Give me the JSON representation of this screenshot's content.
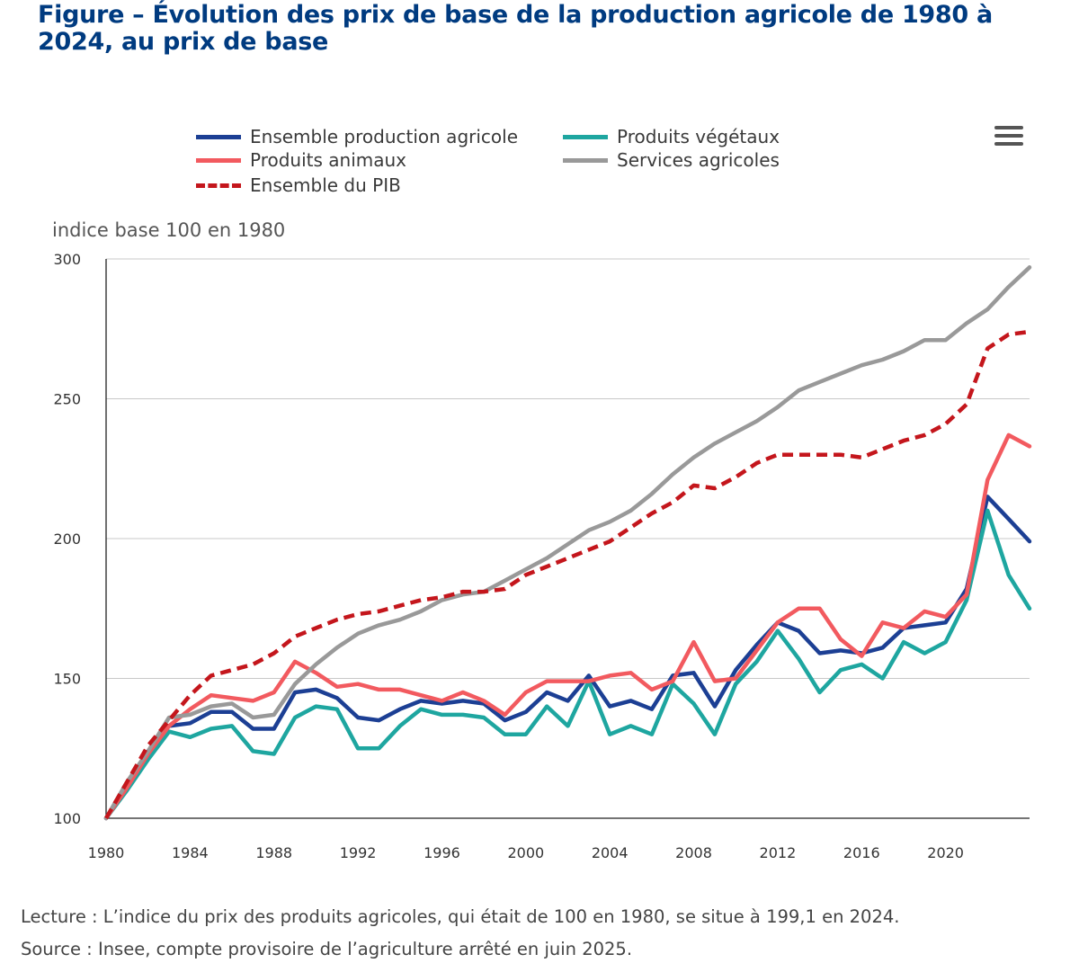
{
  "header": {
    "title": "Figure – Évolution des prix de base de la production agricole de 1980 à 2024, au prix de base"
  },
  "menu": {
    "icon": "hamburger-menu-icon"
  },
  "footer": {
    "lecture": "Lecture : L’indice du prix des produits agricoles, qui était de 100 en 1980, se situe à 199,1 en 2024.",
    "source": "Source : Insee, compte provisoire de l’agriculture arrêté en juin 2025."
  },
  "chart_data": {
    "type": "line",
    "title": "Figure – Évolution des prix de base de la production agricole de 1980 à 2024, au prix de base",
    "ylabel": "indice base 100 en 1980",
    "xlabel": "",
    "xlim": [
      1980,
      2024
    ],
    "ylim": [
      100,
      300
    ],
    "yticks": [
      100,
      150,
      200,
      250,
      300
    ],
    "xticks": [
      1980,
      1984,
      1988,
      1992,
      1996,
      2000,
      2004,
      2008,
      2012,
      2016,
      2020
    ],
    "grid": "horizontal",
    "legend_position": "top",
    "x": [
      1980,
      1981,
      1982,
      1983,
      1984,
      1985,
      1986,
      1987,
      1988,
      1989,
      1990,
      1991,
      1992,
      1993,
      1994,
      1995,
      1996,
      1997,
      1998,
      1999,
      2000,
      2001,
      2002,
      2003,
      2004,
      2005,
      2006,
      2007,
      2008,
      2009,
      2010,
      2011,
      2012,
      2013,
      2014,
      2015,
      2016,
      2017,
      2018,
      2019,
      2020,
      2021,
      2022,
      2023,
      2024
    ],
    "series": [
      {
        "name": "Ensemble production agricole",
        "color": "#1c3f94",
        "dash": false,
        "values": [
          100,
          112,
          124,
          133,
          134,
          138,
          138,
          132,
          132,
          145,
          146,
          143,
          136,
          135,
          139,
          142,
          141,
          142,
          141,
          135,
          138,
          145,
          142,
          151,
          140,
          142,
          139,
          151,
          152,
          140,
          153,
          162,
          170,
          167,
          159,
          160,
          159,
          161,
          168,
          169,
          170,
          182,
          215,
          207,
          199
        ]
      },
      {
        "name": "Produits végétaux",
        "color": "#1ea6a0",
        "dash": false,
        "values": [
          100,
          110,
          121,
          131,
          129,
          132,
          133,
          124,
          123,
          136,
          140,
          139,
          125,
          125,
          133,
          139,
          137,
          137,
          136,
          130,
          130,
          140,
          133,
          149,
          130,
          133,
          130,
          148,
          141,
          130,
          148,
          156,
          167,
          157,
          145,
          153,
          155,
          150,
          163,
          159,
          163,
          178,
          210,
          187,
          175
        ]
      },
      {
        "name": "Produits animaux",
        "color": "#f25a5f",
        "dash": false,
        "values": [
          100,
          111,
          123,
          133,
          139,
          144,
          143,
          142,
          145,
          156,
          152,
          147,
          148,
          146,
          146,
          144,
          142,
          145,
          142,
          137,
          145,
          149,
          149,
          149,
          151,
          152,
          146,
          149,
          163,
          149,
          150,
          160,
          170,
          175,
          175,
          164,
          158,
          170,
          168,
          174,
          172,
          180,
          221,
          237,
          233
        ]
      },
      {
        "name": "Services agricoles",
        "color": "#999999",
        "dash": false,
        "values": [
          100,
          113,
          124,
          136,
          137,
          140,
          141,
          136,
          137,
          148,
          155,
          161,
          166,
          169,
          171,
          174,
          178,
          180,
          181,
          185,
          189,
          193,
          198,
          203,
          206,
          210,
          216,
          223,
          229,
          234,
          238,
          242,
          247,
          253,
          256,
          259,
          262,
          264,
          267,
          271,
          271,
          277,
          282,
          290,
          297
        ]
      },
      {
        "name": "Ensemble du PIB",
        "color": "#c4161c",
        "dash": true,
        "values": [
          100,
          113,
          126,
          135,
          144,
          151,
          153,
          155,
          159,
          165,
          168,
          171,
          173,
          174,
          176,
          178,
          179,
          181,
          181,
          182,
          187,
          190,
          193,
          196,
          199,
          204,
          209,
          213,
          219,
          218,
          222,
          227,
          230,
          230,
          230,
          230,
          229,
          232,
          235,
          237,
          241,
          248,
          268,
          273,
          274
        ]
      }
    ]
  }
}
